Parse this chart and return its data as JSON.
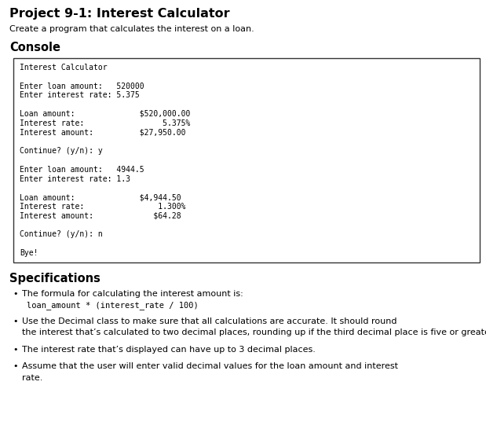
{
  "title": "Project 9-1: Interest Calculator",
  "subtitle": "Create a program that calculates the interest on a loan.",
  "console_header": "Console",
  "console_lines": [
    "Interest Calculator",
    "",
    "Enter loan amount:   520000",
    "Enter interest rate: 5.375",
    "",
    "Loan amount:              $520,000.00",
    "Interest rate:                 5.375%",
    "Interest amount:          $27,950.00",
    "",
    "Continue? (y/n): y",
    "",
    "Enter loan amount:   4944.5",
    "Enter interest rate: 1.3",
    "",
    "Loan amount:              $4,944.50",
    "Interest rate:                1.300%",
    "Interest amount:             $64.28",
    "",
    "Continue? (y/n): n",
    "",
    "Bye!"
  ],
  "specs_header": "Specifications",
  "bullet_items": [
    {
      "text": "The formula for calculating the interest amount is:",
      "code": "loan_amount * (interest_rate / 100)"
    },
    {
      "text": "Use the Decimal class to make sure that all calculations are accurate. It should round the interest that’s calculated to two decimal places, rounding up if the third decimal place is five or greater.",
      "code": null
    },
    {
      "text": "The interest rate that’s displayed can have up to 3 decimal places.",
      "code": null
    },
    {
      "text": "Assume that the user will enter valid decimal values for the loan amount and interest rate.",
      "code": null
    }
  ],
  "bg_color": "#ffffff",
  "console_bg": "#ffffff",
  "console_border": "#333333",
  "title_fontsize": 11.5,
  "subtitle_fontsize": 8.0,
  "console_header_fontsize": 10.5,
  "console_fontsize": 7.0,
  "specs_header_fontsize": 10.5,
  "bullet_fontsize": 8.0,
  "code_fontsize": 7.5
}
